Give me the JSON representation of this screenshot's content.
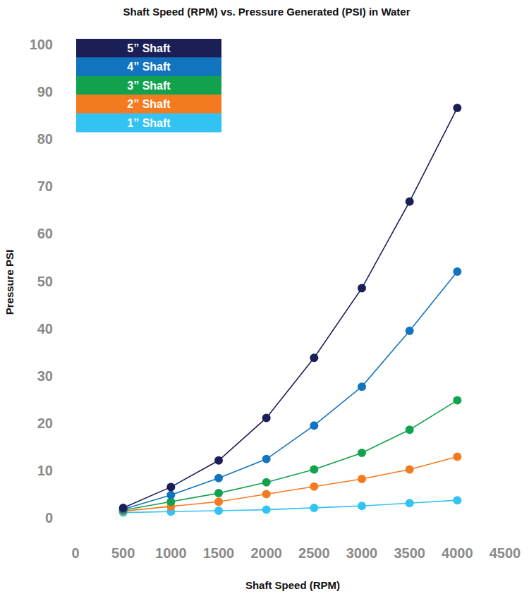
{
  "chart_data": {
    "type": "line",
    "title": "Shaft Speed (RPM) vs. Pressure Generated (PSI) in Water",
    "x_label": "Shaft Speed (RPM)",
    "y_label": "Pressure PSI",
    "x": [
      500,
      1000,
      1500,
      2000,
      2500,
      3000,
      3500,
      4000
    ],
    "series": [
      {
        "name": "5” Shaft",
        "color": "#1b1f56",
        "marker": "circle",
        "values": [
          2.1,
          6.5,
          12.1,
          21.1,
          33.8,
          48.5,
          66.8,
          86.6
        ]
      },
      {
        "name": "4” Shaft",
        "color": "#1274bf",
        "marker": "circle",
        "values": [
          1.8,
          4.8,
          8.4,
          12.4,
          19.5,
          27.7,
          39.5,
          52.0
        ]
      },
      {
        "name": "3” Shaft",
        "color": "#12a24e",
        "marker": "circle",
        "values": [
          1.6,
          3.4,
          5.2,
          7.5,
          10.2,
          13.7,
          18.6,
          24.8
        ]
      },
      {
        "name": "2” Shaft",
        "color": "#f47a20",
        "marker": "circle",
        "values": [
          1.4,
          2.4,
          3.4,
          5.0,
          6.6,
          8.2,
          10.2,
          12.9
        ]
      },
      {
        "name": "1” Shaft",
        "color": "#33c3f3",
        "marker": "circle",
        "values": [
          1.1,
          1.3,
          1.5,
          1.7,
          2.1,
          2.5,
          3.1,
          3.7
        ]
      }
    ],
    "xlim": [
      0,
      4500
    ],
    "xticks": [
      0,
      500,
      1000,
      1500,
      2000,
      2500,
      3000,
      3500,
      4000,
      4500
    ],
    "ylim": [
      0,
      100
    ],
    "yticks": [
      0,
      10,
      20,
      30,
      40,
      50,
      60,
      70,
      80,
      90,
      100
    ],
    "grid": false,
    "legend": "upper left"
  }
}
